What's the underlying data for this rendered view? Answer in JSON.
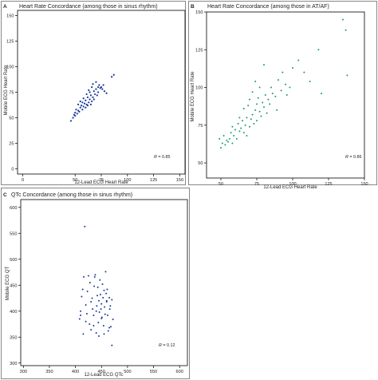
{
  "chart_data": [
    {
      "type": "scatter",
      "panel_label": "A",
      "title": "Heart Rate Concordance (among those in sinus rhythm)",
      "xlabel": "12-Lead ECG Heart Rate",
      "ylabel": "Mobile ECG Heart Rate",
      "xlim": [
        -5,
        155
      ],
      "ylim": [
        -5,
        155
      ],
      "xticks": [
        "0",
        "50",
        "75",
        "100",
        "125",
        "150"
      ],
      "yticks": [
        "0",
        "25",
        "50",
        "75",
        "100",
        "125",
        "150"
      ],
      "annotation_prefix": "R",
      "annotation_value": " = 0.85",
      "point_color": "#1a3a9c",
      "grid": false,
      "x": [
        46,
        48,
        49,
        50,
        50,
        51,
        52,
        53,
        53,
        54,
        55,
        55,
        56,
        57,
        57,
        58,
        58,
        59,
        60,
        60,
        61,
        61,
        62,
        62,
        63,
        63,
        64,
        64,
        65,
        65,
        66,
        66,
        67,
        67,
        68,
        68,
        69,
        70,
        70,
        71,
        72,
        72,
        73,
        74,
        75,
        76,
        77,
        78,
        80,
        85,
        87
      ],
      "y": [
        47,
        50,
        53,
        55,
        52,
        58,
        54,
        57,
        63,
        56,
        60,
        66,
        62,
        58,
        65,
        61,
        69,
        64,
        60,
        67,
        63,
        73,
        62,
        70,
        65,
        77,
        68,
        75,
        63,
        72,
        66,
        80,
        70,
        83,
        68,
        76,
        73,
        78,
        85,
        72,
        80,
        75,
        82,
        79,
        80,
        78,
        82,
        76,
        74,
        90,
        92
      ]
    },
    {
      "type": "scatter",
      "panel_label": "B",
      "title": "Heart Rate Concordance (among those in AT/AF)",
      "xlabel": "12-Lead ECG Heart Rate",
      "ylabel": "Mobile ECG Heart Rate",
      "xlim": [
        40,
        150
      ],
      "ylim": [
        40,
        150
      ],
      "xticks": [
        "50",
        "75",
        "100",
        "125",
        "150"
      ],
      "yticks": [
        "50",
        "75",
        "100",
        "125",
        "150"
      ],
      "annotation_prefix": "R",
      "annotation_value": " = 0.86",
      "point_color": "#1a9a6e",
      "grid": false,
      "x": [
        49,
        50,
        51,
        52,
        53,
        54,
        55,
        56,
        57,
        58,
        58,
        59,
        60,
        61,
        62,
        63,
        63,
        64,
        65,
        66,
        66,
        67,
        68,
        68,
        69,
        70,
        70,
        71,
        72,
        72,
        73,
        74,
        74,
        75,
        75,
        76,
        77,
        77,
        78,
        79,
        80,
        80,
        81,
        82,
        83,
        84,
        85,
        86,
        88,
        89,
        90,
        92,
        93,
        95,
        96,
        98,
        100,
        104,
        108,
        112,
        118,
        120,
        135,
        137,
        138
      ],
      "y": [
        66,
        60,
        63,
        68,
        62,
        65,
        64,
        66,
        70,
        63,
        74,
        68,
        72,
        66,
        76,
        71,
        80,
        73,
        78,
        70,
        86,
        75,
        80,
        68,
        88,
        74,
        92,
        79,
        82,
        97,
        76,
        85,
        104,
        89,
        78,
        93,
        84,
        100,
        81,
        90,
        87,
        115,
        95,
        83,
        92,
        89,
        100,
        96,
        94,
        85,
        105,
        98,
        110,
        102,
        95,
        100,
        113,
        118,
        110,
        104,
        125,
        96,
        145,
        138,
        108
      ]
    },
    {
      "type": "scatter",
      "panel_label": "C",
      "title": "QTc Concordance (among those in sinus rhythm)",
      "xlabel": "12-Lead ECG QTc",
      "ylabel": "Mobile ECG QT",
      "xlim": [
        295,
        615
      ],
      "ylim": [
        295,
        615
      ],
      "xticks": [
        "300",
        "350",
        "400",
        "450",
        "500",
        "550",
        "600"
      ],
      "yticks": [
        "300",
        "350",
        "400",
        "450",
        "500",
        "550",
        "600"
      ],
      "annotation_prefix": "R",
      "annotation_value": " = 0.12",
      "point_color": "#1a3a9c",
      "grid": false,
      "x": [
        408,
        410,
        412,
        414,
        416,
        418,
        420,
        422,
        423,
        425,
        427,
        428,
        430,
        432,
        433,
        435,
        436,
        437,
        438,
        440,
        441,
        442,
        443,
        444,
        445,
        446,
        447,
        448,
        449,
        450,
        451,
        452,
        453,
        454,
        455,
        456,
        457,
        458,
        459,
        460,
        461,
        462,
        463,
        465,
        466,
        467,
        468,
        470,
        472,
        420,
        430,
        440,
        450,
        460,
        415,
        435,
        445,
        455,
        465,
        470,
        410
      ],
      "y": [
        385,
        400,
        428,
        442,
        466,
        563,
        412,
        395,
        438,
        468,
        375,
        455,
        418,
        425,
        404,
        392,
        448,
        466,
        470,
        358,
        410,
        430,
        446,
        378,
        420,
        398,
        460,
        432,
        404,
        414,
        388,
        452,
        426,
        372,
        440,
        408,
        394,
        476,
        434,
        418,
        442,
        392,
        362,
        426,
        404,
        410,
        370,
        334,
        384,
        380,
        364,
        400,
        386,
        420,
        356,
        372,
        352,
        356,
        368,
        422,
        392
      ]
    }
  ]
}
